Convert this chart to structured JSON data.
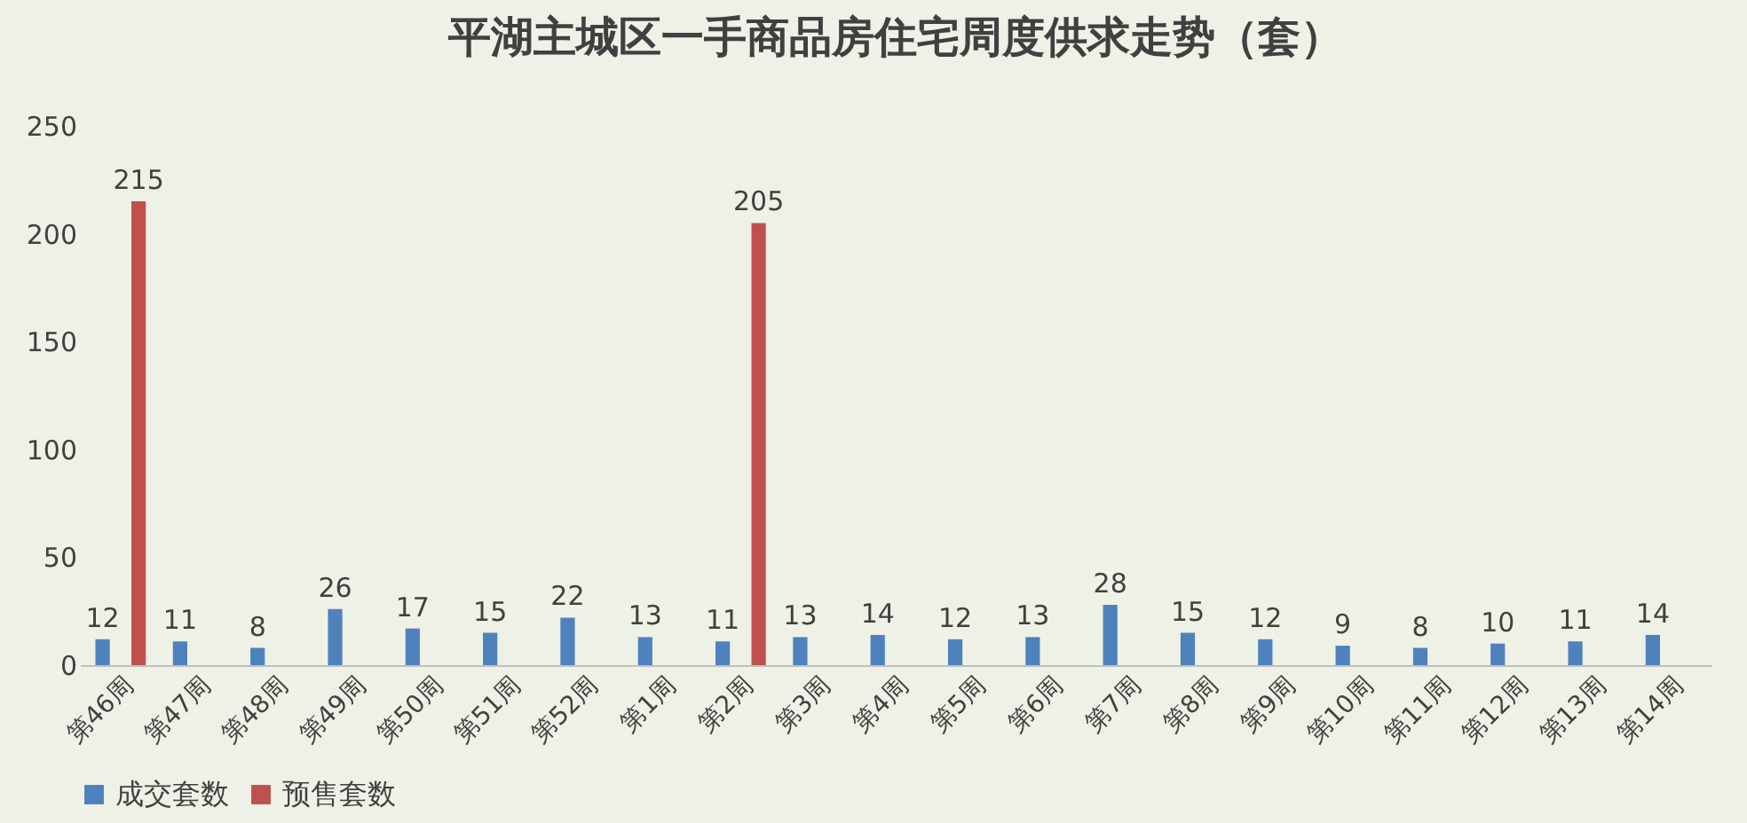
{
  "chart_data": {
    "type": "bar",
    "title": "平湖主城区一手商品房住宅周度供求走势（套）",
    "categories": [
      "第46周",
      "第47周",
      "第48周",
      "第49周",
      "第50周",
      "第51周",
      "第52周",
      "第1周",
      "第2周",
      "第3周",
      "第4周",
      "第5周",
      "第6周",
      "第7周",
      "第8周",
      "第9周",
      "第10周",
      "第11周",
      "第12周",
      "第13周",
      "第14周"
    ],
    "series": [
      {
        "name": "成交套数",
        "color": "#4f81bd",
        "values": [
          12,
          11,
          8,
          26,
          17,
          15,
          22,
          13,
          11,
          13,
          14,
          12,
          13,
          28,
          15,
          12,
          9,
          8,
          10,
          11,
          14
        ]
      },
      {
        "name": "预售套数",
        "color": "#c0504d",
        "values": [
          215,
          null,
          null,
          null,
          null,
          null,
          null,
          null,
          205,
          null,
          null,
          null,
          null,
          null,
          null,
          null,
          null,
          null,
          null,
          null,
          null
        ]
      }
    ],
    "ylim": [
      0,
      250
    ],
    "yticks": [
      0,
      50,
      100,
      150,
      200,
      250
    ],
    "grid": false,
    "legend": "bottom",
    "data_labels": true
  }
}
